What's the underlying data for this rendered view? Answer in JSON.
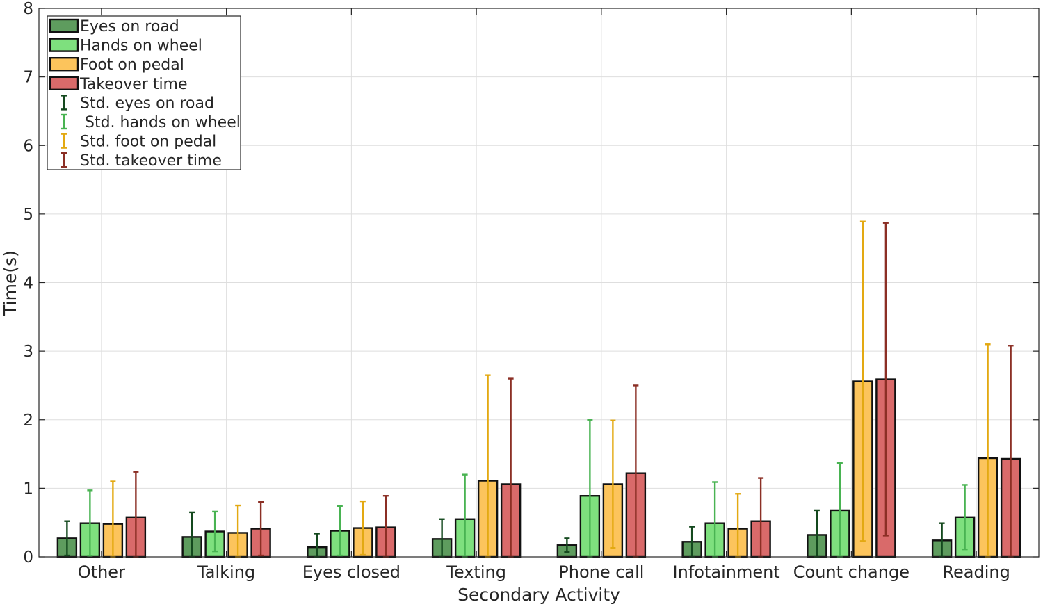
{
  "chart_data": {
    "type": "bar",
    "title": "",
    "xlabel": "Secondary Activity",
    "ylabel": "Time(s)",
    "ylim": [
      0,
      8
    ],
    "yticks": [
      "0",
      "1",
      "2",
      "3",
      "4",
      "5",
      "6",
      "7",
      "8"
    ],
    "grid": true,
    "legend_position": "top-left",
    "categories": [
      "Other",
      "Talking",
      "Eyes closed",
      "Texting",
      "Phone call",
      "Infotainment",
      "Count change",
      "Reading"
    ],
    "series": [
      {
        "name": "Eyes on road",
        "std_name": "Std. eyes on road",
        "color": "#5e9c5e",
        "err_color": "#14491e",
        "values": [
          0.27,
          0.29,
          0.14,
          0.26,
          0.17,
          0.22,
          0.32,
          0.24
        ],
        "std": [
          0.25,
          0.36,
          0.2,
          0.29,
          0.1,
          0.22,
          0.36,
          0.25
        ]
      },
      {
        "name": "Hands on wheel",
        "std_name": " Std. hands on wheel",
        "color": "#7ee07e",
        "err_color": "#49b352",
        "values": [
          0.49,
          0.37,
          0.38,
          0.55,
          0.89,
          0.49,
          0.68,
          0.58
        ],
        "std": [
          0.48,
          0.29,
          0.36,
          0.65,
          1.11,
          0.6,
          0.69,
          0.47
        ]
      },
      {
        "name": "Foot on pedal",
        "std_name": "Std. foot on pedal",
        "color": "#fcc45c",
        "err_color": "#e3a912",
        "values": [
          0.48,
          0.35,
          0.42,
          1.11,
          1.06,
          0.41,
          2.56,
          1.44
        ],
        "std": [
          0.62,
          0.4,
          0.39,
          1.54,
          0.93,
          0.51,
          2.33,
          1.66
        ]
      },
      {
        "name": "Takeover time",
        "std_name": "Std. takeover time",
        "color": "#d96a6a",
        "err_color": "#8b2f25",
        "values": [
          0.58,
          0.41,
          0.43,
          1.06,
          1.22,
          0.52,
          2.59,
          1.43
        ],
        "std": [
          0.66,
          0.39,
          0.46,
          1.54,
          1.28,
          0.63,
          2.28,
          1.65
        ]
      }
    ]
  }
}
